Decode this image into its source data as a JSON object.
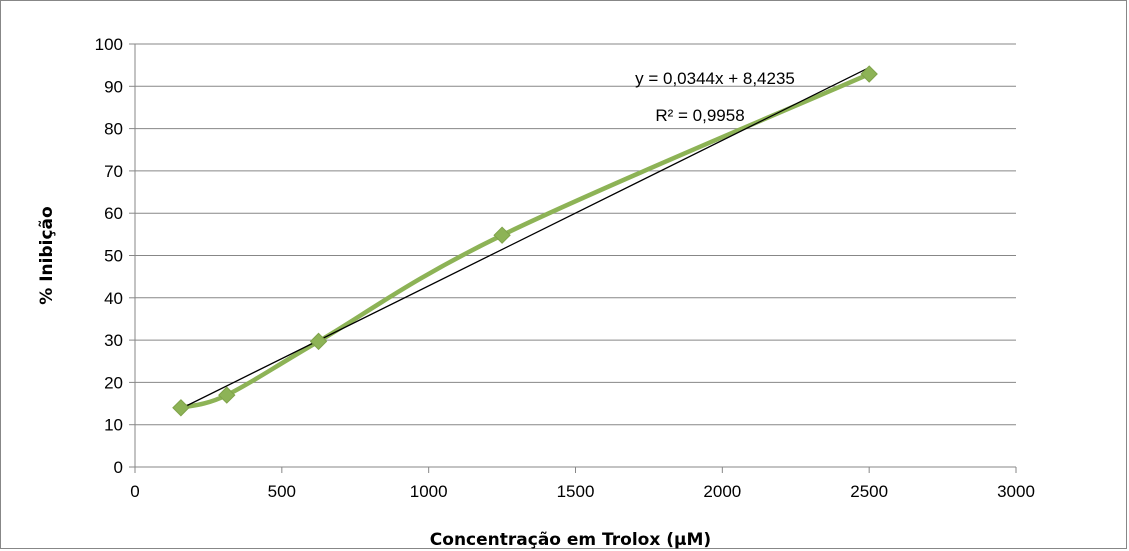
{
  "chart_data": {
    "type": "scatter",
    "title": "",
    "xlabel": "Concentração em Trolox (µM)",
    "ylabel": "% Inibição",
    "xlim": [
      0,
      3000
    ],
    "ylim": [
      0,
      100
    ],
    "xticks": [
      0,
      500,
      1000,
      1500,
      2000,
      2500,
      3000
    ],
    "yticks": [
      0,
      10,
      20,
      30,
      40,
      50,
      60,
      70,
      80,
      90,
      100
    ],
    "grid": "horizontal",
    "legend": "none",
    "series": [
      {
        "marker": "diamond",
        "line": "smooth",
        "color": "#8db356",
        "x": [
          156.25,
          312.5,
          625,
          1250,
          2500
        ],
        "y": [
          14,
          17,
          29.7,
          54.8,
          92.9
        ]
      }
    ],
    "trendline": {
      "type": "linear",
      "color": "#000000",
      "slope": 0.0344,
      "intercept": 8.4235,
      "x_range": [
        156.25,
        2500
      ],
      "equation": "y = 0,0344x + 8,4235",
      "r_squared": "R² = 0,9958"
    }
  }
}
